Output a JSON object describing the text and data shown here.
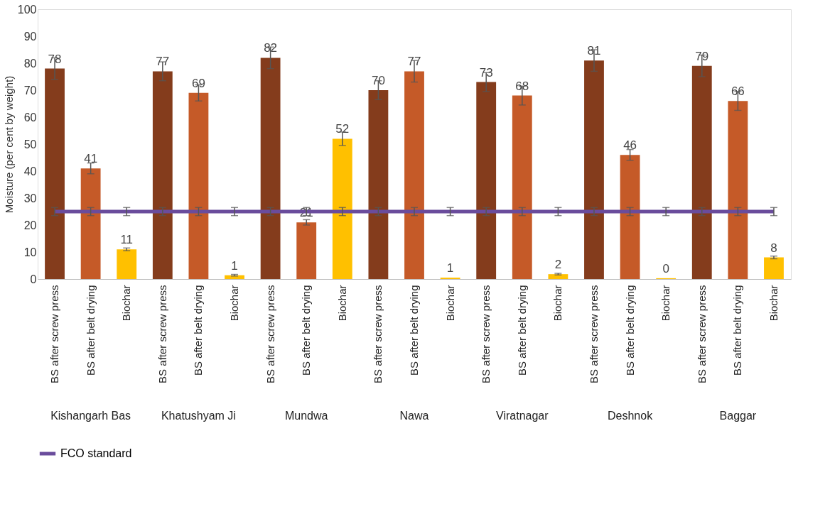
{
  "chart_data": {
    "type": "bar",
    "ylabel": "Moisture (per cent by weight)",
    "categories": [
      "BS after screw press",
      "BS after belt drying",
      "Biochar",
      "BS after screw press",
      "BS after belt drying",
      "Biochar",
      "BS after screw press",
      "BS after belt drying",
      "Biochar",
      "BS after screw press",
      "BS after belt drying",
      "Biochar",
      "BS after screw press",
      "BS after belt drying",
      "Biochar",
      "BS after screw press",
      "BS after belt drying",
      "Biochar",
      "BS after screw press",
      "BS after belt drying",
      "Biochar"
    ],
    "annotations": [
      "Kishangarh Bas",
      "Khatushyam Ji",
      "Mundwa",
      "Nawa",
      "Viratnagar",
      "Deshnok",
      "Baggar"
    ],
    "series": [
      {
        "colors": [
          "#843c1c",
          "#c55a28",
          "#ffc000",
          "#843c1c",
          "#c55a28",
          "#ffc000",
          "#843c1c",
          "#c55a28",
          "#ffc000",
          "#843c1c",
          "#c55a28",
          "#ffc000",
          "#843c1c",
          "#c55a28",
          "#ffc000",
          "#843c1c",
          "#c55a28",
          "#ffc000",
          "#843c1c",
          "#c55a28",
          "#ffc000"
        ],
        "values": [
          78,
          41,
          11,
          77,
          69,
          1.4,
          82,
          21,
          52,
          70,
          77,
          0.5,
          73,
          68,
          1.8,
          81,
          46,
          0.3,
          79,
          66,
          8
        ],
        "value_labels": [
          "78",
          "41",
          "11",
          "77",
          "69",
          "1",
          "82",
          "21",
          "52",
          "70",
          "77",
          "1",
          "73",
          "68",
          "2",
          "81",
          "46",
          "0",
          "79",
          "66",
          "8"
        ],
        "errors": [
          4,
          2,
          0.5,
          3.5,
          3,
          0.3,
          4,
          1,
          2.5,
          3.5,
          4,
          null,
          3.5,
          3.5,
          0.3,
          4,
          2,
          null,
          4,
          3.5,
          0.5
        ]
      },
      {
        "type": "line",
        "name": "FCO standard",
        "color": "#6a4c9c",
        "values": [
          25,
          25,
          25,
          25,
          25,
          25,
          25,
          25,
          25,
          25,
          25,
          25,
          25,
          25,
          25,
          25,
          25,
          25,
          25,
          25,
          25
        ],
        "errors": [
          1.5,
          1.5,
          1.5,
          1.5,
          1.5,
          1.5,
          1.5,
          1.5,
          1.5,
          1.5,
          1.5,
          1.5,
          1.5,
          1.5,
          1.5,
          1.5,
          1.5,
          1.5,
          1.5,
          1.5,
          1.5
        ]
      }
    ],
    "ylim": [
      0,
      100
    ],
    "yticks": [
      0,
      10,
      20,
      30,
      40,
      50,
      60,
      70,
      80,
      90,
      100
    ],
    "grid": false,
    "legend": "bottom"
  }
}
